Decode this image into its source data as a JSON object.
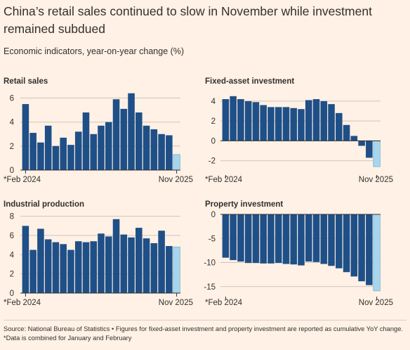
{
  "header": {
    "title": "China’s retail sales continued to slow in November while investment remained subdued",
    "subtitle": "Economic indicators, year-on-year change (%)"
  },
  "footer": {
    "source": "Source: National Bureau of Statistics • Figures for fixed-asset investment and property investment are reported as cumulative YoY change. *Data is combined for January and February"
  },
  "colors": {
    "bar": "#1f4f87",
    "latest_bar": "#a6d6ee",
    "background": "#fff1e5"
  },
  "chart_data": [
    {
      "type": "bar",
      "title": "Retail sales",
      "x_start_label": "*Feb 2024",
      "x_end_label": "Nov 2025",
      "categories": [
        "Feb 2024",
        "Mar 2024",
        "Apr 2024",
        "May 2024",
        "Jun 2024",
        "Jul 2024",
        "Aug 2024",
        "Sep 2024",
        "Oct 2024",
        "Nov 2024",
        "Dec 2024",
        "Feb 2025",
        "Mar 2025",
        "Apr 2025",
        "May 2025",
        "Jun 2025",
        "Jul 2025",
        "Aug 2025",
        "Sep 2025",
        "Oct 2025",
        "Nov 2025"
      ],
      "values": [
        5.5,
        3.1,
        2.3,
        3.7,
        2.0,
        2.7,
        2.1,
        3.2,
        4.8,
        3.0,
        3.7,
        4.0,
        5.9,
        5.1,
        6.4,
        4.8,
        3.7,
        3.4,
        3.0,
        2.9,
        1.3
      ],
      "ylim": [
        0,
        6.5
      ],
      "yticks": [
        0,
        2,
        4,
        6
      ],
      "highlight_last": true
    },
    {
      "type": "bar",
      "title": "Fixed-asset investment",
      "x_start_label": "*Feb 2024",
      "x_end_label": "Nov 2025",
      "categories": [
        "Feb 2024",
        "Mar 2024",
        "Apr 2024",
        "May 2024",
        "Jun 2024",
        "Jul 2024",
        "Aug 2024",
        "Sep 2024",
        "Oct 2024",
        "Nov 2024",
        "Dec 2024",
        "Feb 2025",
        "Mar 2025",
        "Apr 2025",
        "May 2025",
        "Jun 2025",
        "Jul 2025",
        "Aug 2025",
        "Sep 2025",
        "Oct 2025",
        "Nov 2025"
      ],
      "values": [
        4.2,
        4.5,
        4.2,
        4.0,
        3.9,
        3.6,
        3.4,
        3.4,
        3.4,
        3.3,
        3.2,
        4.1,
        4.2,
        4.0,
        3.7,
        2.8,
        1.6,
        0.5,
        -0.5,
        -1.7,
        -2.6
      ],
      "ylim": [
        -2.8,
        4.7
      ],
      "yticks": [
        -2,
        0,
        2,
        4
      ],
      "highlight_last": true
    },
    {
      "type": "bar",
      "title": "Industrial production",
      "x_start_label": "*Feb 2024",
      "x_end_label": "Nov 2025",
      "categories": [
        "Feb 2024",
        "Mar 2024",
        "Apr 2024",
        "May 2024",
        "Jun 2024",
        "Jul 2024",
        "Aug 2024",
        "Sep 2024",
        "Oct 2024",
        "Nov 2024",
        "Dec 2024",
        "Feb 2025",
        "Mar 2025",
        "Apr 2025",
        "May 2025",
        "Jun 2025",
        "Jul 2025",
        "Aug 2025",
        "Sep 2025",
        "Oct 2025",
        "Nov 2025"
      ],
      "values": [
        7.0,
        4.5,
        6.7,
        5.6,
        5.3,
        5.1,
        4.5,
        5.4,
        5.3,
        5.4,
        6.2,
        5.9,
        7.7,
        6.1,
        5.8,
        6.8,
        5.7,
        5.2,
        6.5,
        4.9,
        4.8
      ],
      "ylim": [
        0,
        8.2
      ],
      "yticks": [
        0,
        2,
        4,
        6,
        8
      ],
      "highlight_last": true
    },
    {
      "type": "bar",
      "title": "Property investment",
      "x_start_label": "*Feb 2024",
      "x_end_label": "Nov 2025",
      "categories": [
        "Feb 2024",
        "Mar 2024",
        "Apr 2024",
        "May 2024",
        "Jun 2024",
        "Jul 2024",
        "Aug 2024",
        "Sep 2024",
        "Oct 2024",
        "Nov 2024",
        "Dec 2024",
        "Feb 2025",
        "Mar 2025",
        "Apr 2025",
        "May 2025",
        "Jun 2025",
        "Jul 2025",
        "Aug 2025",
        "Sep 2025",
        "Oct 2025",
        "Nov 2025"
      ],
      "values": [
        -9.0,
        -9.5,
        -9.8,
        -10.1,
        -10.1,
        -10.2,
        -10.2,
        -10.1,
        -10.3,
        -10.4,
        -10.6,
        -9.8,
        -9.9,
        -10.3,
        -10.7,
        -11.2,
        -12.0,
        -12.9,
        -13.9,
        -14.7,
        -15.9
      ],
      "ylim": [
        -16.2,
        0
      ],
      "yticks": [
        -15,
        -10,
        -5,
        0
      ],
      "highlight_last": true
    }
  ]
}
